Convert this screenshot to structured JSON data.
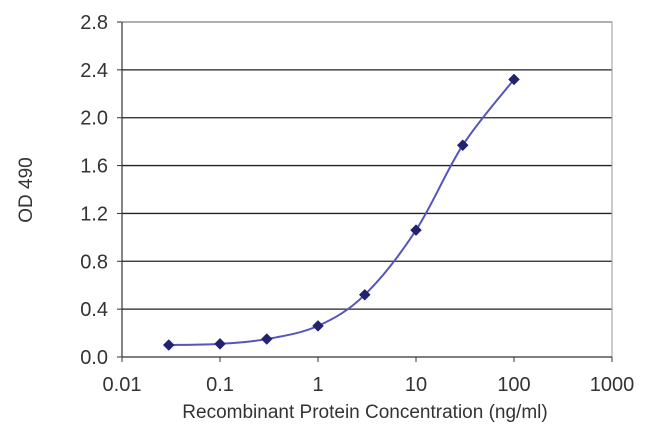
{
  "chart_data": {
    "type": "line",
    "title": "",
    "xlabel": "Recombinant Protein Concentration (ng/ml)",
    "ylabel": "OD 490",
    "x_scale": "log",
    "xlim": [
      0.01,
      1000
    ],
    "ylim": [
      0.0,
      2.8
    ],
    "x_ticks": [
      "0.01",
      "0.1",
      "1",
      "10",
      "100",
      "1000"
    ],
    "y_ticks": [
      "0.0",
      "0.4",
      "0.8",
      "1.2",
      "1.6",
      "2.0",
      "2.4",
      "2.8"
    ],
    "grid": "horizontal",
    "series": [
      {
        "x": [
          0.03,
          0.1,
          0.3,
          1,
          3,
          10,
          30,
          100
        ],
        "y": [
          0.1,
          0.11,
          0.15,
          0.26,
          0.52,
          1.06,
          1.77,
          2.32
        ]
      }
    ],
    "colors": {
      "line": "#5555bb",
      "marker": "#22226e",
      "grid": "#222222",
      "axis": "#333333"
    }
  }
}
